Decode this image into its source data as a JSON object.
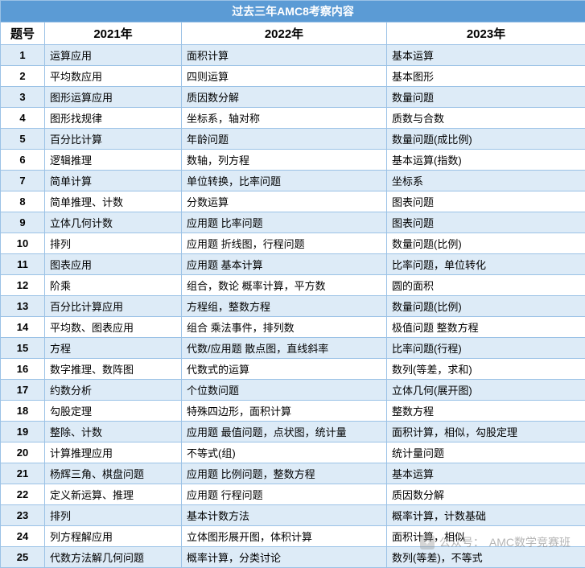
{
  "title": "过去三年AMC8考察内容",
  "columns": [
    "题号",
    "2021年",
    "2022年",
    "2023年"
  ],
  "rows": [
    {
      "n": "1",
      "y21": "运算应用",
      "y22": "面积计算",
      "y23": "基本运算"
    },
    {
      "n": "2",
      "y21": "平均数应用",
      "y22": "四则运算",
      "y23": "基本图形"
    },
    {
      "n": "3",
      "y21": "图形运算应用",
      "y22": "质因数分解",
      "y23": "数量问题"
    },
    {
      "n": "4",
      "y21": "图形找规律",
      "y22": "坐标系，轴对称",
      "y23": "质数与合数"
    },
    {
      "n": "5",
      "y21": "百分比计算",
      "y22": "年龄问题",
      "y23": "数量问题(成比例)"
    },
    {
      "n": "6",
      "y21": "逻辑推理",
      "y22": "数轴，列方程",
      "y23": "基本运算(指数)"
    },
    {
      "n": "7",
      "y21": "简单计算",
      "y22": "单位转换，比率问题",
      "y23": "坐标系"
    },
    {
      "n": "8",
      "y21": "简单推理、计数",
      "y22": "分数运算",
      "y23": "图表问题"
    },
    {
      "n": "9",
      "y21": "立体几何计数",
      "y22": "应用题 比率问题",
      "y23": "图表问题"
    },
    {
      "n": "10",
      "y21": "排列",
      "y22": "应用题 折线图，行程问题",
      "y23": "数量问题(比例)"
    },
    {
      "n": "11",
      "y21": "图表应用",
      "y22": "应用题 基本计算",
      "y23": "比率问题，单位转化"
    },
    {
      "n": "12",
      "y21": "阶乘",
      "y22": "组合，数论 概率计算，平方数",
      "y23": "圆的面积"
    },
    {
      "n": "13",
      "y21": "百分比计算应用",
      "y22": "方程组，整数方程",
      "y23": "数量问题(比例)"
    },
    {
      "n": "14",
      "y21": "平均数、图表应用",
      "y22": "组合 乘法事件，排列数",
      "y23": "极值问题 整数方程"
    },
    {
      "n": "15",
      "y21": "方程",
      "y22": "代数/应用题 散点图，直线斜率",
      "y23": "比率问题(行程)"
    },
    {
      "n": "16",
      "y21": "数字推理、数阵图",
      "y22": "代数式的运算",
      "y23": "数列(等差，求和)"
    },
    {
      "n": "17",
      "y21": "约数分析",
      "y22": "个位数问题",
      "y23": "立体几何(展开图)"
    },
    {
      "n": "18",
      "y21": "勾股定理",
      "y22": "特殊四边形，面积计算",
      "y23": "整数方程"
    },
    {
      "n": "19",
      "y21": "整除、计数",
      "y22": "应用题 最值问题，点状图，统计量",
      "y23": "面积计算，相似，勾股定理"
    },
    {
      "n": "20",
      "y21": "计算推理应用",
      "y22": "不等式(组)",
      "y23": "统计量问题"
    },
    {
      "n": "21",
      "y21": "杨辉三角、棋盘问题",
      "y22": "应用题 比例问题，整数方程",
      "y23": "基本运算"
    },
    {
      "n": "22",
      "y21": "定义新运算、推理",
      "y22": "应用题 行程问题",
      "y23": "质因数分解"
    },
    {
      "n": "23",
      "y21": "排列",
      "y22": "基本计数方法",
      "y23": "概率计算，计数基础"
    },
    {
      "n": "24",
      "y21": "列方程解应用",
      "y22": "立体图形展开图，体积计算",
      "y23": "面积计算，相似"
    },
    {
      "n": "25",
      "y21": "代数方法解几何问题",
      "y22": "概率计算，分类讨论",
      "y23": "数列(等差)，不等式"
    }
  ],
  "watermark": {
    "prefix": "公众号：",
    "name": "AMC数学竞赛班"
  },
  "colors": {
    "header_bg": "#5b9bd5",
    "header_fg": "#ffffff",
    "band_odd": "#ddebf7",
    "band_even": "#ffffff",
    "border": "#9bc2e6"
  }
}
